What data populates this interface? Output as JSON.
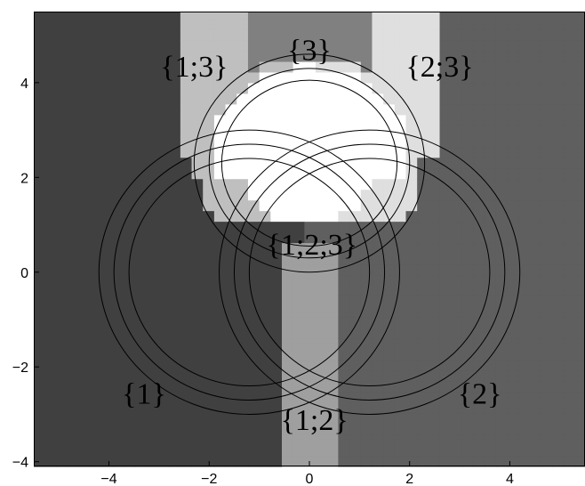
{
  "chart_data": {
    "type": "heatmap",
    "title": "",
    "xlabel": "",
    "ylabel": "",
    "xlim": [
      -5.5,
      5.5
    ],
    "ylim": [
      -4.1,
      5.5
    ],
    "grid": false,
    "x_ticks": [
      -4,
      -2,
      0,
      2,
      4
    ],
    "y_ticks": [
      -4,
      -2,
      0,
      2,
      4
    ],
    "x_tick_labels": [
      "−4",
      "−2",
      "0",
      "2",
      "4"
    ],
    "y_tick_labels": [
      "−4",
      "−2",
      "0",
      "2",
      "4"
    ],
    "regions": [
      {
        "label": "{1}",
        "color": "#404040",
        "label_pos": [
          -3.3,
          -2.55
        ]
      },
      {
        "label": "{2}",
        "color": "#5f5f5f",
        "label_pos": [
          3.4,
          -2.55
        ]
      },
      {
        "label": "{3}",
        "color": "#808080",
        "label_pos": [
          0.0,
          4.7
        ]
      },
      {
        "label": "{1;2}",
        "color": "#9f9f9f",
        "label_pos": [
          0.1,
          -3.1
        ]
      },
      {
        "label": "{1;3}",
        "color": "#bfbfbf",
        "label_pos": [
          -2.3,
          4.35
        ]
      },
      {
        "label": "{2;3}",
        "color": "#dfdfdf",
        "label_pos": [
          2.6,
          4.35
        ]
      },
      {
        "label": "{1;2;3}",
        "color": "#ffffff",
        "label_pos": [
          0.05,
          0.6
        ]
      }
    ],
    "circle_sets": [
      {
        "center": [
          -1.2,
          0.0
        ],
        "radii": [
          2.4,
          2.7,
          3.0
        ]
      },
      {
        "center": [
          1.2,
          0.0
        ],
        "radii": [
          2.4,
          2.7,
          3.0
        ]
      },
      {
        "center": [
          0.0,
          2.3
        ],
        "radii": [
          1.75,
          2.0,
          2.3
        ]
      }
    ],
    "line_color": "#000000"
  }
}
